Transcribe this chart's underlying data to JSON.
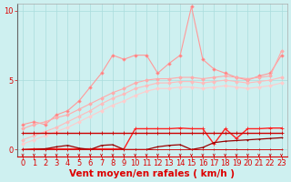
{
  "background_color": "#cef0f0",
  "grid_color": "#aadddd",
  "x": [
    0,
    1,
    2,
    3,
    4,
    5,
    6,
    7,
    8,
    9,
    10,
    11,
    12,
    13,
    14,
    15,
    16,
    17,
    18,
    19,
    20,
    21,
    22,
    23
  ],
  "xlabel": "Vent moyen/en rafales ( km/h )",
  "ylim": [
    -0.5,
    10.5
  ],
  "xlim": [
    -0.5,
    23.5
  ],
  "yticks": [
    0,
    5,
    10
  ],
  "xticks": [
    0,
    1,
    2,
    3,
    4,
    5,
    6,
    7,
    8,
    9,
    10,
    11,
    12,
    13,
    14,
    15,
    16,
    17,
    18,
    19,
    20,
    21,
    22,
    23
  ],
  "series": [
    {
      "name": "peak_line",
      "color": "#ff9999",
      "lw": 0.8,
      "marker": "D",
      "markersize": 1.8,
      "markerfacecolor": "#ff7777",
      "y": [
        1.8,
        2.0,
        1.8,
        2.5,
        2.8,
        3.5,
        4.5,
        5.5,
        6.8,
        6.5,
        6.8,
        6.8,
        5.5,
        6.2,
        6.8,
        10.3,
        6.5,
        5.8,
        5.5,
        5.2,
        5.0,
        5.3,
        5.5,
        6.8
      ]
    },
    {
      "name": "upper_smooth",
      "color": "#ffaaaa",
      "lw": 0.8,
      "marker": "D",
      "markersize": 1.8,
      "markerfacecolor": "#ffaaaa",
      "y": [
        1.5,
        1.8,
        2.0,
        2.3,
        2.5,
        2.9,
        3.3,
        3.7,
        4.1,
        4.4,
        4.8,
        5.0,
        5.1,
        5.1,
        5.2,
        5.2,
        5.1,
        5.2,
        5.3,
        5.2,
        5.1,
        5.2,
        5.3,
        7.1
      ]
    },
    {
      "name": "mid_smooth1",
      "color": "#ffbbbb",
      "lw": 0.8,
      "marker": "D",
      "markersize": 1.8,
      "markerfacecolor": "#ffbbbb",
      "y": [
        0.7,
        1.0,
        1.3,
        1.6,
        2.0,
        2.4,
        2.8,
        3.3,
        3.7,
        4.0,
        4.4,
        4.6,
        4.8,
        4.8,
        4.9,
        4.9,
        4.8,
        4.9,
        5.0,
        4.9,
        4.8,
        4.9,
        5.0,
        5.2
      ]
    },
    {
      "name": "mid_smooth2",
      "color": "#ffcccc",
      "lw": 0.8,
      "marker": "D",
      "markersize": 1.8,
      "markerfacecolor": "#ffcccc",
      "y": [
        0.4,
        0.7,
        1.0,
        1.3,
        1.6,
        2.0,
        2.4,
        2.8,
        3.2,
        3.5,
        3.9,
        4.2,
        4.4,
        4.4,
        4.5,
        4.5,
        4.4,
        4.5,
        4.6,
        4.5,
        4.4,
        4.5,
        4.6,
        4.8
      ]
    },
    {
      "name": "red_bump",
      "color": "#ff2222",
      "lw": 1.0,
      "marker": "+",
      "markersize": 3.0,
      "markerfacecolor": "#ff2222",
      "y": [
        0.0,
        0.05,
        0.05,
        0.05,
        0.05,
        0.05,
        0.05,
        0.05,
        0.05,
        0.05,
        1.5,
        1.5,
        1.5,
        1.5,
        1.55,
        1.5,
        1.5,
        0.4,
        1.5,
        0.8,
        1.5,
        1.5,
        1.55,
        1.55
      ]
    },
    {
      "name": "flat_red",
      "color": "#cc0000",
      "lw": 1.0,
      "marker": "+",
      "markersize": 2.5,
      "markerfacecolor": "#cc0000",
      "y": [
        1.2,
        1.2,
        1.2,
        1.2,
        1.2,
        1.2,
        1.2,
        1.2,
        1.2,
        1.2,
        1.2,
        1.2,
        1.2,
        1.2,
        1.2,
        1.2,
        1.2,
        1.2,
        1.2,
        1.2,
        1.2,
        1.2,
        1.2,
        1.2
      ]
    },
    {
      "name": "dark_triangle",
      "color": "#990000",
      "lw": 0.9,
      "marker": "+",
      "markersize": 2.0,
      "markerfacecolor": "#990000",
      "y": [
        0.0,
        0.0,
        0.05,
        0.2,
        0.3,
        0.1,
        0.0,
        0.3,
        0.35,
        0.0,
        0.0,
        0.0,
        0.2,
        0.3,
        0.35,
        0.0,
        0.15,
        0.5,
        0.6,
        0.65,
        0.7,
        0.75,
        0.8,
        0.85
      ]
    },
    {
      "name": "near_zero",
      "color": "#cc1111",
      "lw": 0.7,
      "marker": "+",
      "markersize": 1.5,
      "markerfacecolor": "#cc1111",
      "y": [
        0.0,
        0.0,
        0.0,
        0.0,
        0.0,
        0.0,
        0.0,
        0.0,
        0.0,
        0.0,
        0.0,
        0.0,
        0.0,
        0.0,
        0.0,
        0.0,
        0.0,
        0.0,
        0.0,
        0.0,
        0.0,
        0.0,
        0.0,
        0.0
      ]
    }
  ],
  "xlabel_color": "#dd0000",
  "xlabel_fontsize": 7.5,
  "tick_color": "#dd0000",
  "tick_fontsize": 6,
  "arrow_color": "#cc0000"
}
